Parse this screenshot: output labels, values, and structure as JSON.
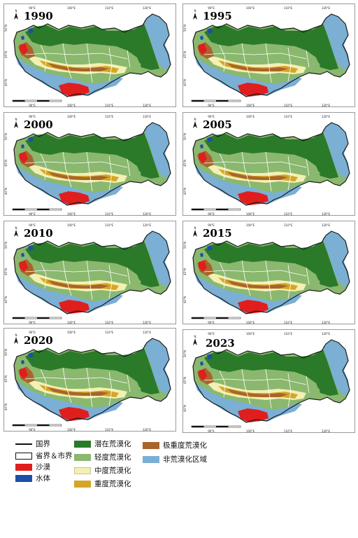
{
  "colors": {
    "national_border": "#1a1a1a",
    "province_city_border": "#ffffff",
    "sand": "#e01e1e",
    "water": "#1b4fa8",
    "potential": "#2a7a2a",
    "light": "#8ab86e",
    "moderate": "#f3f0b4",
    "severe": "#d4a628",
    "extreme": "#a9642c",
    "non_desertified": "#7bafd4"
  },
  "panels": [
    {
      "year": "1990",
      "lon_ticks": [
        "90°E",
        "100°E",
        "110°E",
        "120°E"
      ],
      "lat_ticks": [
        "50°N",
        "45°N",
        "40°N"
      ]
    },
    {
      "year": "1995",
      "lon_ticks": [
        "90°E",
        "100°E",
        "110°E",
        "120°E"
      ],
      "lat_ticks": [
        "50°N",
        "45°N",
        "40°N"
      ]
    },
    {
      "year": "2000",
      "lon_ticks": [
        "90°E",
        "100°E",
        "110°E",
        "120°E"
      ],
      "lat_ticks": [
        "50°N",
        "45°N",
        "40°N"
      ]
    },
    {
      "year": "2005",
      "lon_ticks": [
        "90°E",
        "100°E",
        "110°E",
        "120°E"
      ],
      "lat_ticks": [
        "50°N",
        "45°N",
        "40°N"
      ]
    },
    {
      "year": "2010",
      "lon_ticks": [
        "90°E",
        "100°E",
        "110°E",
        "120°E"
      ],
      "lat_ticks": [
        "50°N",
        "45°N",
        "40°N"
      ]
    },
    {
      "year": "2015",
      "lon_ticks": [
        "90°E",
        "100°E",
        "110°E",
        "120°E"
      ],
      "lat_ticks": [
        "50°N",
        "45°N",
        "40°N"
      ]
    },
    {
      "year": "2020",
      "lon_ticks": [
        "90°E",
        "100°E",
        "110°E",
        "120°E"
      ],
      "lat_ticks": [
        "50°N",
        "45°N",
        "40°N"
      ]
    },
    {
      "year": "2023",
      "lon_ticks": [
        "90°E",
        "100°E",
        "110°E",
        "120°E"
      ],
      "lat_ticks": [
        "50°N",
        "45°N",
        "40°N"
      ]
    }
  ],
  "north_arrow_label": "N",
  "legend": {
    "national_border": "国界",
    "province_city_border": "省界＆市界",
    "sand": "沙漠",
    "water": "水体",
    "potential": "潜在荒漠化",
    "light": "轻度荒漠化",
    "moderate": "中度荒漠化",
    "severe": "重度荒漠化",
    "extreme": "极重度荒漠化",
    "non_desertified": "非荒漠化区域"
  }
}
